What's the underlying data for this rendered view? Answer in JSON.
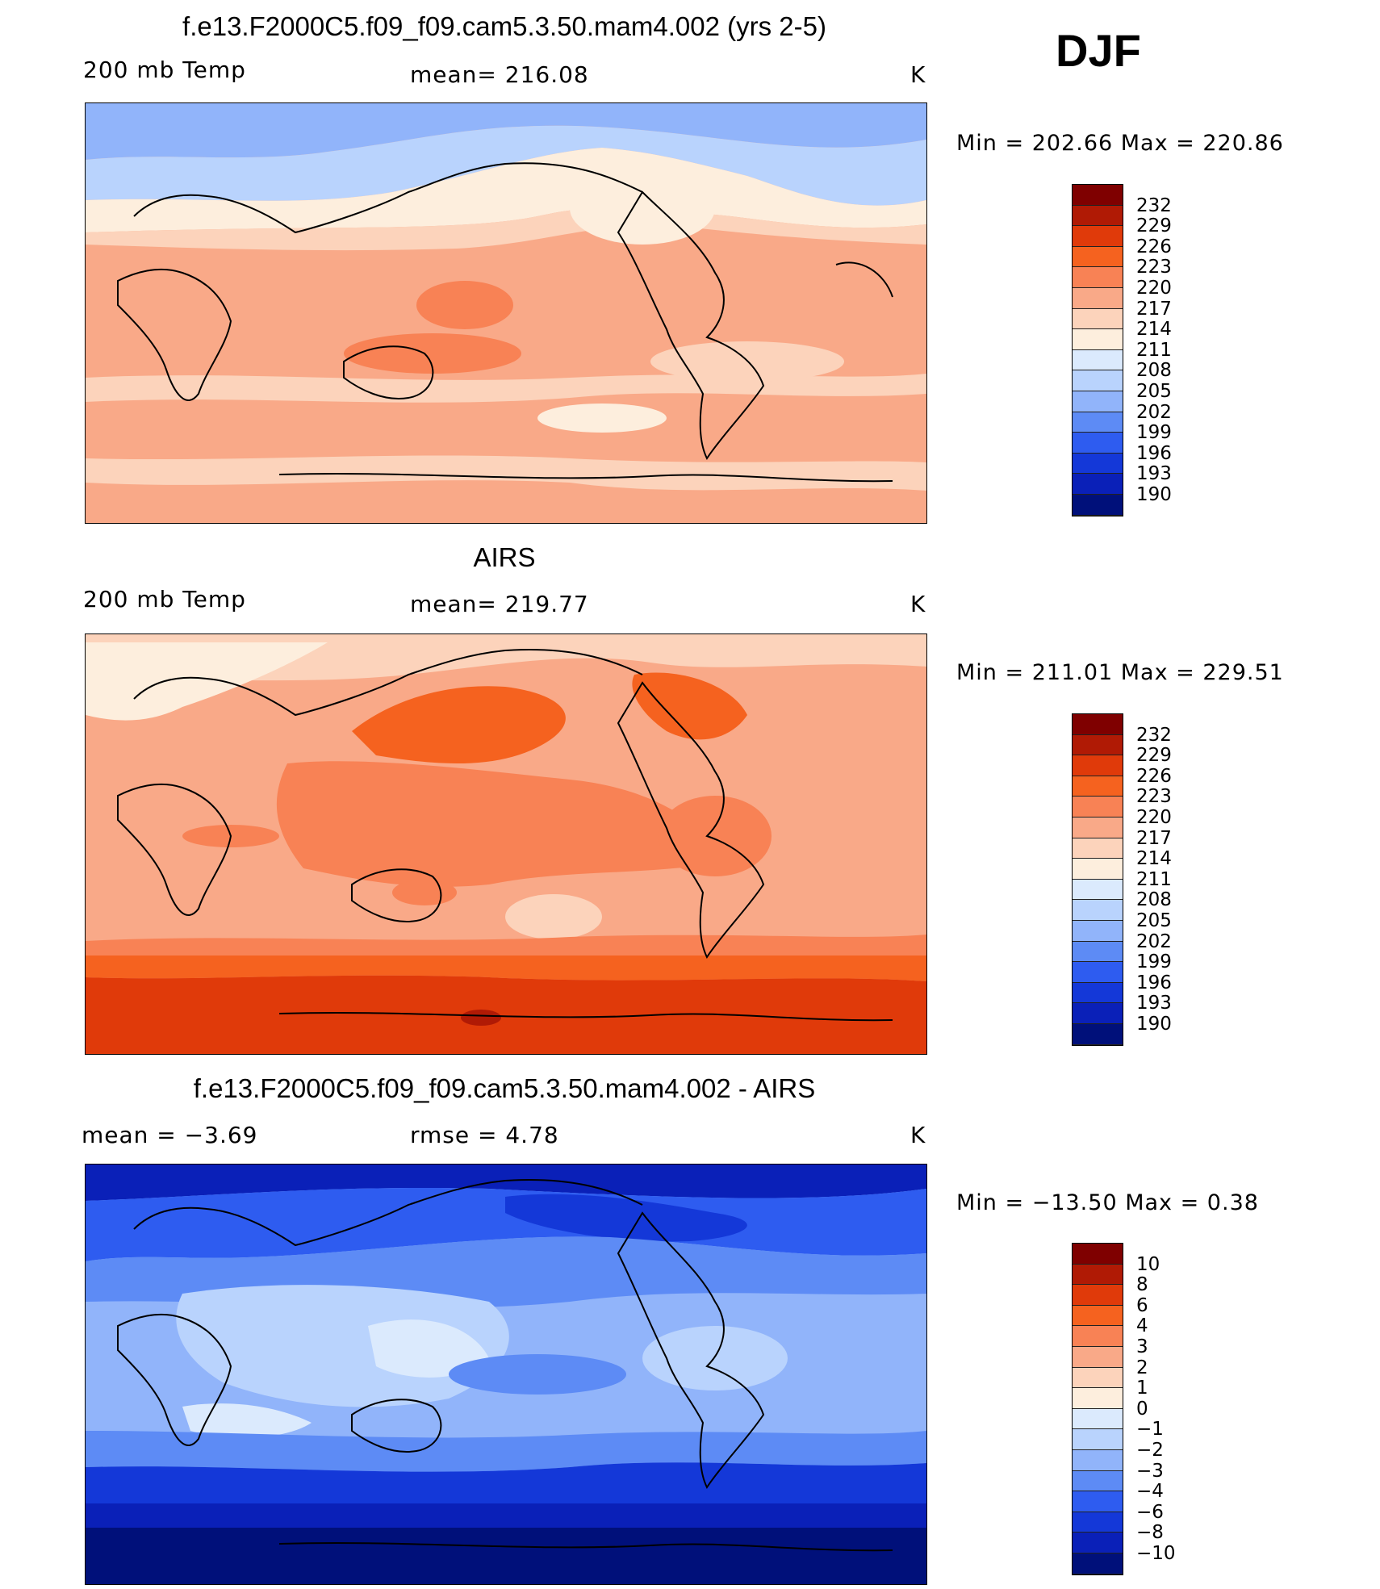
{
  "season": "DJF",
  "panels": [
    {
      "title": "f.e13.F2000C5.f09_f09.cam5.3.50.mam4.002 (yrs 2-5)",
      "left_label": "200 mb Temp",
      "center_label": "mean=  216.08",
      "units": "K",
      "minmax": "Min  =  202.66  Max  =  220.86",
      "colorbar": {
        "levels": [
          "232",
          "229",
          "226",
          "223",
          "220",
          "217",
          "214",
          "211",
          "208",
          "205",
          "202",
          "199",
          "196",
          "193",
          "190"
        ],
        "colors": [
          "#7f0000",
          "#b01a05",
          "#e03a0a",
          "#f5621f",
          "#f88255",
          "#f9a988",
          "#fcd3bb",
          "#fdeedd",
          "#dbeafd",
          "#b9d3fd",
          "#91b4fa",
          "#5d8bf5",
          "#2e5cf0",
          "#1438d8",
          "#0a20b8",
          "#00107a"
        ]
      },
      "background": "#f9a988"
    },
    {
      "title": "AIRS",
      "left_label": "200 mb Temp",
      "center_label": "mean=  219.77",
      "units": "K",
      "minmax": "Min  =  211.01  Max  =  229.51",
      "colorbar": {
        "levels": [
          "232",
          "229",
          "226",
          "223",
          "220",
          "217",
          "214",
          "211",
          "208",
          "205",
          "202",
          "199",
          "196",
          "193",
          "190"
        ],
        "colors": [
          "#7f0000",
          "#b01a05",
          "#e03a0a",
          "#f5621f",
          "#f88255",
          "#f9a988",
          "#fcd3bb",
          "#fdeedd",
          "#dbeafd",
          "#b9d3fd",
          "#91b4fa",
          "#5d8bf5",
          "#2e5cf0",
          "#1438d8",
          "#0a20b8",
          "#00107a"
        ]
      },
      "background": "#f88255"
    },
    {
      "title": "f.e13.F2000C5.f09_f09.cam5.3.50.mam4.002 - AIRS",
      "left_label": "mean  =     −3.69",
      "center_label": "rmse  =      4.78",
      "units": "K",
      "minmax": "Min  =  −13.50  Max  =      0.38",
      "colorbar": {
        "levels": [
          "10",
          "8",
          "6",
          "4",
          "3",
          "2",
          "1",
          "0",
          "−1",
          "−2",
          "−3",
          "−4",
          "−6",
          "−8",
          "−10"
        ],
        "colors": [
          "#7f0000",
          "#b01a05",
          "#e03a0a",
          "#f5621f",
          "#f88255",
          "#f9a988",
          "#fcd3bb",
          "#fdeedd",
          "#dbeafd",
          "#b9d3fd",
          "#91b4fa",
          "#5d8bf5",
          "#2e5cf0",
          "#1438d8",
          "#0a20b8",
          "#00107a"
        ]
      },
      "background": "#91b4fa"
    }
  ]
}
